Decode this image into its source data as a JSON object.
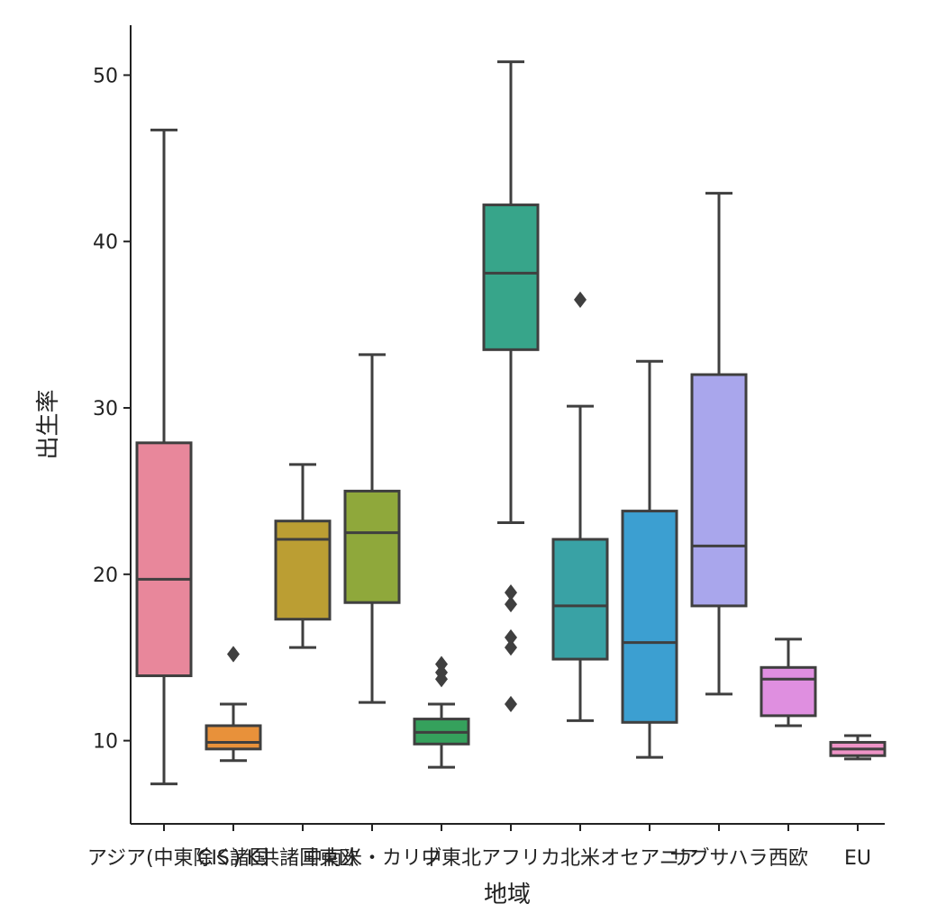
{
  "chart_data": {
    "type": "box",
    "xlabel": "地域",
    "ylabel": "出生率",
    "ylim": [
      5,
      53
    ],
    "yticks": [
      10,
      20,
      30,
      40,
      50
    ],
    "grid": false,
    "categories": [
      "アジア(中東除く)",
      "CIS諸国",
      "K共諸国東欧",
      "中南米・カリブ",
      "中東",
      "北アフリカ",
      "北米",
      "オセアニア",
      "サブサハラ",
      "西欧",
      "EU"
    ],
    "boxes": [
      {
        "category": "アジア(中東除く)",
        "color": "#e8879b",
        "whisker_low": 7.4,
        "q1": 13.9,
        "median": 19.7,
        "q3": 27.9,
        "whisker_high": 46.7,
        "outliers": []
      },
      {
        "category": "CIS諸国",
        "color": "#e8913a",
        "whisker_low": 8.8,
        "q1": 9.5,
        "median": 9.9,
        "q3": 10.9,
        "whisker_high": 12.2,
        "outliers": [
          15.2
        ]
      },
      {
        "category": "K共諸国東欧",
        "color": "#bb9e33",
        "whisker_low": 15.6,
        "q1": 17.3,
        "median": 22.1,
        "q3": 23.2,
        "whisker_high": 26.6,
        "outliers": []
      },
      {
        "category": "中南米・カリブ",
        "color": "#8fa83b",
        "whisker_low": 12.3,
        "q1": 18.3,
        "median": 22.5,
        "q3": 25.0,
        "whisker_high": 33.2,
        "outliers": []
      },
      {
        "category": "中東",
        "color": "#35a15c",
        "whisker_low": 8.4,
        "q1": 9.8,
        "median": 10.5,
        "q3": 11.3,
        "whisker_high": 12.2,
        "outliers": [
          13.7,
          14.1,
          14.6
        ]
      },
      {
        "category": "北アフリカ",
        "color": "#37a58a",
        "whisker_low": 23.1,
        "q1": 33.5,
        "median": 38.1,
        "q3": 42.2,
        "whisker_high": 50.8,
        "outliers": [
          12.2,
          15.6,
          16.2,
          18.2,
          18.9
        ]
      },
      {
        "category": "北米",
        "color": "#39a2a5",
        "whisker_low": 11.2,
        "q1": 14.9,
        "median": 18.1,
        "q3": 22.1,
        "whisker_high": 30.1,
        "outliers": [
          36.5
        ]
      },
      {
        "category": "オセアニア",
        "color": "#3c9fd1",
        "whisker_low": 9.0,
        "q1": 11.1,
        "median": 15.9,
        "q3": 23.8,
        "whisker_high": 32.8,
        "outliers": []
      },
      {
        "category": "サブサハラ",
        "color": "#a9a6ec",
        "whisker_low": 12.8,
        "q1": 18.1,
        "median": 21.7,
        "q3": 32.0,
        "whisker_high": 42.9,
        "outliers": []
      },
      {
        "category": "西欧",
        "color": "#df8fe0",
        "whisker_low": 10.9,
        "q1": 11.5,
        "median": 13.7,
        "q3": 14.4,
        "whisker_high": 16.1,
        "outliers": []
      },
      {
        "category": "EU",
        "color": "#ee93c6",
        "whisker_low": 8.9,
        "q1": 9.1,
        "median": 9.5,
        "q3": 9.9,
        "whisker_high": 10.3,
        "outliers": []
      }
    ]
  }
}
